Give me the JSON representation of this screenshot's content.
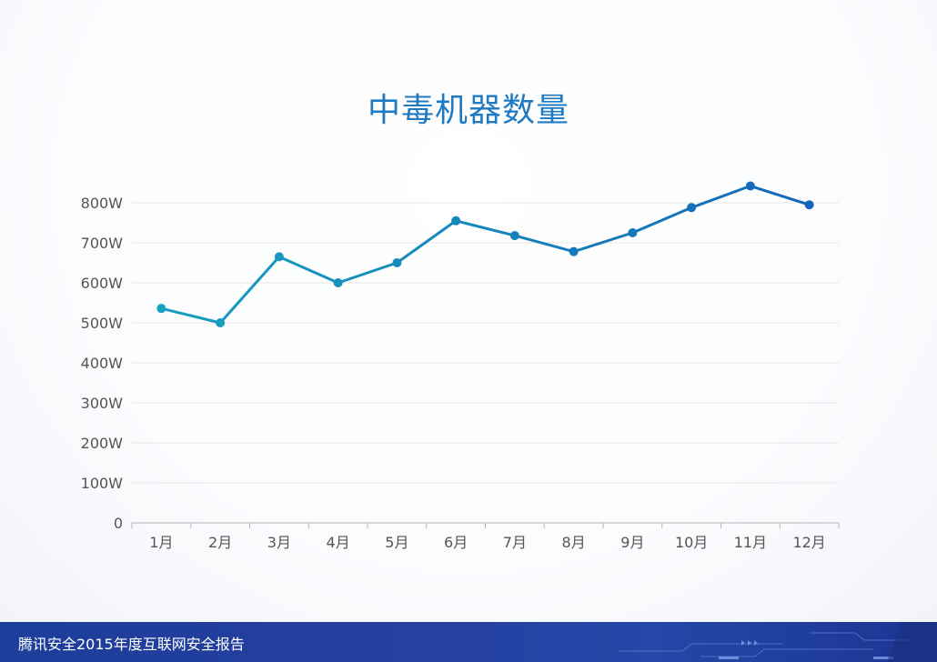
{
  "page": {
    "title": "中毒机器数量",
    "footer_text": "腾讯安全2015年度互联网安全报告"
  },
  "colors": {
    "title": "#1f7ac2",
    "line_start": "#17a2bf",
    "line_end": "#1565b8",
    "axis_text": "#555555",
    "gridline": "#e6e6e6",
    "footer_bg": "#233f9f"
  },
  "chart_data": {
    "type": "line",
    "title": "中毒机器数量",
    "categories": [
      "1月",
      "2月",
      "3月",
      "4月",
      "5月",
      "6月",
      "7月",
      "8月",
      "9月",
      "10月",
      "11月",
      "12月"
    ],
    "values": [
      536,
      500,
      665,
      600,
      650,
      755,
      718,
      678,
      725,
      788,
      842,
      795
    ],
    "ylim": [
      0,
      800
    ],
    "y_ticks": [
      0,
      100,
      200,
      300,
      400,
      500,
      600,
      700,
      800
    ],
    "y_tick_labels": [
      "0",
      "100W",
      "200W",
      "300W",
      "400W",
      "500W",
      "600W",
      "700W",
      "800W"
    ],
    "grid": true,
    "legend": "none"
  }
}
